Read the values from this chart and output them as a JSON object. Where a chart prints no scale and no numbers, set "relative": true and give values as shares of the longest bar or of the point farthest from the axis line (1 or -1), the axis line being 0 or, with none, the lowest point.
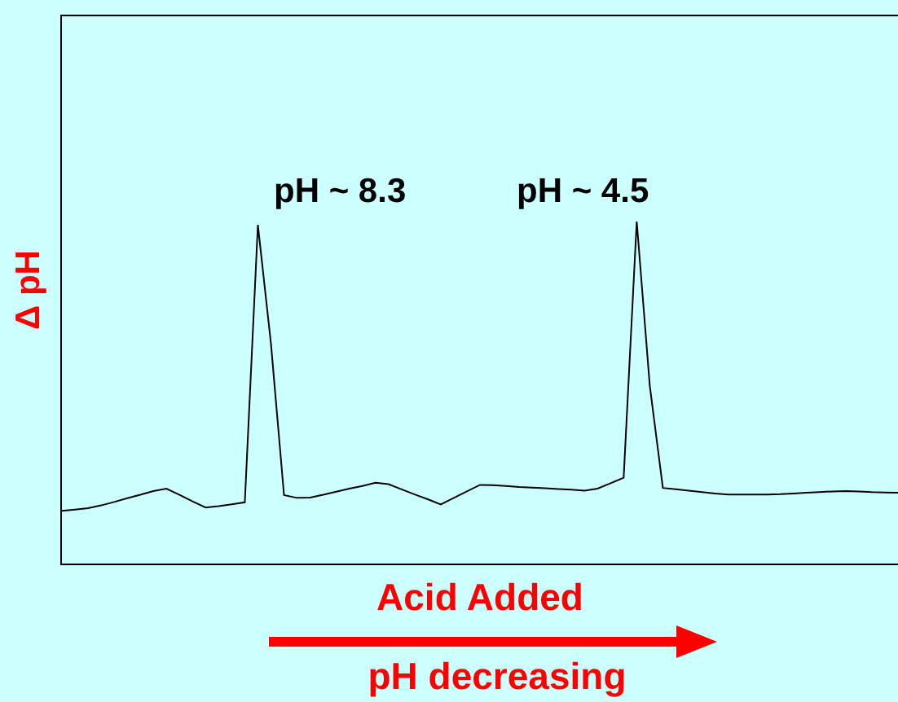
{
  "chart_data": {
    "type": "line",
    "relative": true,
    "xlabel": "Acid Added",
    "ylabel": "Δ pH",
    "tick_labels": false,
    "marker": "none",
    "line_style": "solid",
    "categories": [
      null,
      null,
      null,
      null,
      null,
      null,
      null,
      null,
      null,
      null,
      null,
      null,
      null,
      null,
      null,
      null,
      null,
      null,
      null,
      null,
      null,
      null,
      null,
      null,
      null,
      null,
      null,
      null,
      null,
      null,
      null,
      null,
      null,
      null,
      null,
      null,
      null,
      null,
      null,
      null,
      null,
      null,
      null,
      null,
      null,
      null,
      null,
      null,
      null,
      null,
      null,
      null,
      null,
      null,
      null,
      null,
      null,
      null,
      null,
      null,
      null,
      null,
      null,
      null,
      null
    ],
    "series": [
      {
        "color": "#000000",
        "values": [
          0.154,
          0.158,
          0.162,
          0.17,
          0.18,
          0.191,
          0.201,
          0.212,
          0.219,
          0.201,
          0.182,
          0.164,
          0.168,
          0.173,
          0.179,
          0.99,
          0.643,
          0.2,
          0.192,
          0.193,
          0.201,
          0.21,
          0.219,
          0.227,
          0.236,
          0.232,
          0.217,
          0.202,
          0.188,
          0.173,
          0.192,
          0.211,
          0.23,
          0.229,
          0.227,
          0.224,
          0.222,
          0.22,
          0.218,
          0.216,
          0.213,
          0.219,
          0.235,
          0.251,
          1,
          0.52,
          0.221,
          0.217,
          0.213,
          0.209,
          0.205,
          0.202,
          0.202,
          0.202,
          0.202,
          0.203,
          0.205,
          0.207,
          0.209,
          0.211,
          0.212,
          0.211,
          0.209,
          0.208,
          0.207
        ]
      }
    ],
    "annotations": [
      "pH ~ 8.3",
      "pH ~ 4.5",
      "pH decreasing"
    ]
  }
}
